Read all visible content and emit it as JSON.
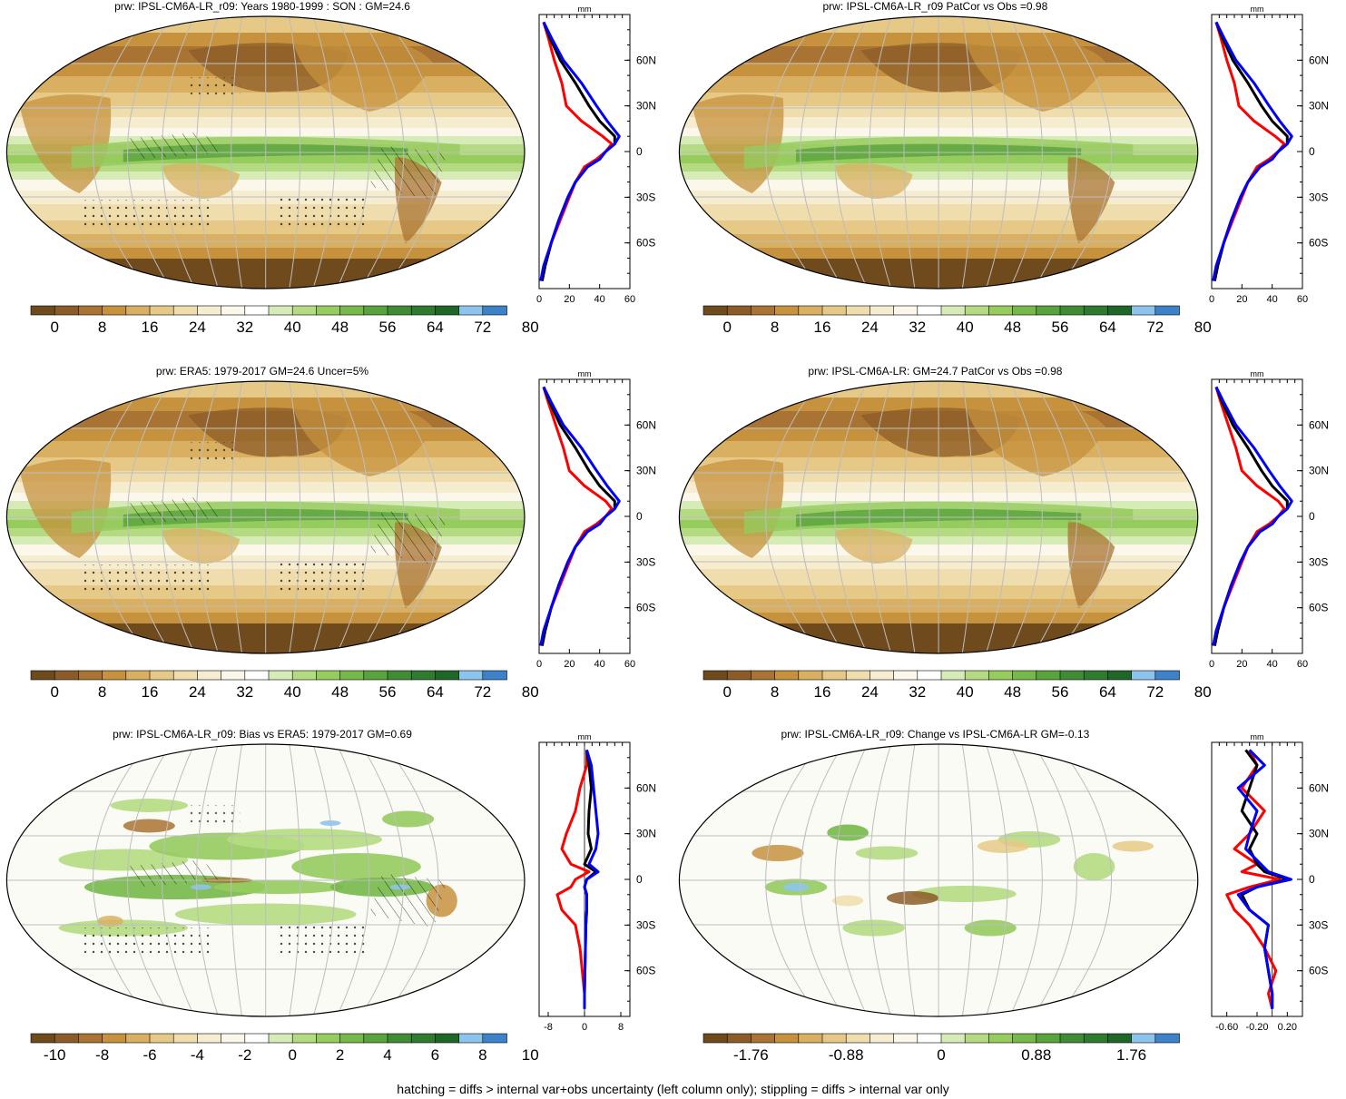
{
  "footer_note": "hatching = diffs > internal var+obs uncertainty (left column only); stippling = diffs > internal var only",
  "colors": {
    "scale": [
      "#6e4a1c",
      "#8c5c28",
      "#a97333",
      "#c6923e",
      "#d9b061",
      "#e6c987",
      "#efddad",
      "#f6ecd0",
      "#fbf7ea",
      "#ffffff",
      "#d7ebb8",
      "#b5db82",
      "#96cb5e",
      "#76b84a",
      "#59a33d",
      "#3f8c35",
      "#2e7a2f",
      "#1f6726",
      "#8dc4ee",
      "#3b82c8"
    ],
    "lines": {
      "model": "#ff0000",
      "ens": "#000000",
      "obs": "#0000ff"
    }
  },
  "panels": [
    {
      "id": "p1",
      "title": "prw: IPSL-CM6A-LR_r09: Years 1980-1999 : SON : GM=24.6",
      "colorbar_labels": [
        "0",
        "8",
        "16",
        "24",
        "32",
        "40",
        "48",
        "56",
        "64",
        "72",
        "80"
      ],
      "zonal_axis": {
        "units": "mm",
        "xticks": [
          "0",
          "20",
          "40",
          "60"
        ],
        "xmin": 0,
        "xmax": 60,
        "yticks": [
          "60N",
          "30N",
          "0",
          "30S",
          "60S"
        ]
      },
      "map_style": "full",
      "hatched": true
    },
    {
      "id": "p2",
      "title": "prw: IPSL-CM6A-LR_r09 PatCor vs Obs =0.98",
      "colorbar_labels": [
        "0",
        "8",
        "16",
        "24",
        "32",
        "40",
        "48",
        "56",
        "64",
        "72",
        "80"
      ],
      "zonal_axis": {
        "units": "mm",
        "xticks": [
          "0",
          "20",
          "40",
          "60"
        ],
        "xmin": 0,
        "xmax": 60,
        "yticks": [
          "60N",
          "30N",
          "0",
          "30S",
          "60S"
        ]
      },
      "map_style": "full",
      "hatched": false
    },
    {
      "id": "p3",
      "title": "prw: ERA5: 1979-2017 GM=24.6 Uncer=5%",
      "colorbar_labels": [
        "0",
        "8",
        "16",
        "24",
        "32",
        "40",
        "48",
        "56",
        "64",
        "72",
        "80"
      ],
      "zonal_axis": {
        "units": "mm",
        "xticks": [
          "0",
          "20",
          "40",
          "60"
        ],
        "xmin": 0,
        "xmax": 60,
        "yticks": [
          "60N",
          "30N",
          "0",
          "30S",
          "60S"
        ]
      },
      "map_style": "full",
      "hatched": true
    },
    {
      "id": "p4",
      "title": "prw: IPSL-CM6A-LR: GM=24.7 PatCor vs Obs =0.98",
      "colorbar_labels": [
        "0",
        "8",
        "16",
        "24",
        "32",
        "40",
        "48",
        "56",
        "64",
        "72",
        "80"
      ],
      "zonal_axis": {
        "units": "mm",
        "xticks": [
          "0",
          "20",
          "40",
          "60"
        ],
        "xmin": 0,
        "xmax": 60,
        "yticks": [
          "60N",
          "30N",
          "0",
          "30S",
          "60S"
        ]
      },
      "map_style": "full",
      "hatched": false
    },
    {
      "id": "p5",
      "title": "prw: IPSL-CM6A-LR_r09: Bias vs ERA5: 1979-2017  GM=0.69",
      "colorbar_labels": [
        "-10",
        "-8",
        "-6",
        "-4",
        "-2",
        "0",
        "2",
        "4",
        "6",
        "8",
        "10"
      ],
      "zonal_axis": {
        "units": "mm",
        "xticks": [
          "-8",
          "0",
          "8"
        ],
        "xmin": -10,
        "xmax": 10,
        "yticks": [
          "60N",
          "30N",
          "0",
          "30S",
          "60S"
        ]
      },
      "map_style": "bias",
      "hatched": true
    },
    {
      "id": "p6",
      "title": "prw: IPSL-CM6A-LR_r09: Change vs IPSL-CM6A-LR GM=-0.13",
      "colorbar_labels": [
        "-1.76",
        "-0.88",
        "0",
        "0.88",
        "1.76"
      ],
      "zonal_axis": {
        "units": "mm",
        "xticks": [
          "-0.60",
          "-0.20",
          "0.20"
        ],
        "xmin": -0.8,
        "xmax": 0.4,
        "yticks": [
          "60N",
          "30N",
          "0",
          "30S",
          "60S"
        ]
      },
      "map_style": "change",
      "hatched": false
    }
  ],
  "chart_data": [
    {
      "type": "line",
      "title": "prw: IPSL-CM6A-LR_r09: Years 1980-1999 : SON : GM=24.6",
      "xlabel": "mm",
      "ylabel": "",
      "xlim": [
        0,
        60
      ],
      "ylim": [
        -90,
        90
      ],
      "y": [
        85,
        75,
        60,
        45,
        30,
        20,
        10,
        5,
        0,
        -5,
        -10,
        -20,
        -30,
        -45,
        -60,
        -75,
        -85
      ],
      "series": [
        {
          "values": [
            3,
            6,
            10,
            15,
            18,
            28,
            42,
            48,
            44,
            38,
            30,
            24,
            20,
            14,
            8,
            4,
            2
          ]
        },
        {
          "values": [
            3,
            7,
            14,
            24,
            33,
            40,
            50,
            50,
            44,
            40,
            32,
            24,
            19,
            13,
            8,
            4,
            2
          ]
        },
        {
          "values": [
            3,
            8,
            16,
            28,
            38,
            45,
            53,
            50,
            44,
            40,
            32,
            24,
            19,
            13,
            8,
            3,
            1
          ]
        }
      ]
    },
    {
      "type": "line",
      "title": "prw: IPSL-CM6A-LR_r09 PatCor vs Obs =0.98",
      "xlabel": "mm",
      "ylabel": "",
      "xlim": [
        0,
        60
      ],
      "ylim": [
        -90,
        90
      ],
      "y": [
        85,
        75,
        60,
        45,
        30,
        20,
        10,
        5,
        0,
        -5,
        -10,
        -20,
        -30,
        -45,
        -60,
        -75,
        -85
      ],
      "series": [
        {
          "values": [
            3,
            6,
            10,
            15,
            18,
            28,
            42,
            48,
            44,
            38,
            30,
            24,
            20,
            14,
            8,
            4,
            2
          ]
        },
        {
          "values": [
            3,
            7,
            14,
            24,
            33,
            40,
            50,
            50,
            44,
            40,
            32,
            24,
            19,
            13,
            8,
            4,
            2
          ]
        },
        {
          "values": [
            3,
            8,
            16,
            28,
            38,
            45,
            53,
            50,
            44,
            40,
            32,
            24,
            19,
            13,
            8,
            3,
            1
          ]
        }
      ]
    },
    {
      "type": "line",
      "title": "prw: ERA5: 1979-2017 GM=24.6 Uncer=5%",
      "xlabel": "mm",
      "ylabel": "",
      "xlim": [
        0,
        60
      ],
      "ylim": [
        -90,
        90
      ],
      "y": [
        85,
        75,
        60,
        45,
        30,
        20,
        10,
        5,
        0,
        -5,
        -10,
        -20,
        -30,
        -45,
        -60,
        -75,
        -85
      ],
      "series": [
        {
          "values": [
            3,
            6,
            11,
            16,
            20,
            30,
            44,
            48,
            44,
            38,
            30,
            24,
            20,
            14,
            8,
            4,
            2
          ]
        },
        {
          "values": [
            3,
            7,
            14,
            24,
            33,
            40,
            50,
            50,
            44,
            40,
            32,
            24,
            19,
            13,
            8,
            4,
            2
          ]
        },
        {
          "values": [
            3,
            8,
            16,
            28,
            38,
            45,
            53,
            50,
            44,
            40,
            32,
            24,
            19,
            13,
            8,
            3,
            1
          ]
        }
      ]
    },
    {
      "type": "line",
      "title": "prw: IPSL-CM6A-LR: GM=24.7 PatCor vs Obs =0.98",
      "xlabel": "mm",
      "ylabel": "",
      "xlim": [
        0,
        60
      ],
      "ylim": [
        -90,
        90
      ],
      "y": [
        85,
        75,
        60,
        45,
        30,
        20,
        10,
        5,
        0,
        -5,
        -10,
        -20,
        -30,
        -45,
        -60,
        -75,
        -85
      ],
      "series": [
        {
          "values": [
            3,
            6,
            11,
            16,
            20,
            30,
            44,
            48,
            44,
            38,
            30,
            24,
            20,
            14,
            8,
            4,
            2
          ]
        },
        {
          "values": [
            3,
            7,
            14,
            24,
            33,
            40,
            50,
            50,
            44,
            40,
            32,
            24,
            19,
            13,
            8,
            4,
            2
          ]
        },
        {
          "values": [
            3,
            8,
            16,
            28,
            38,
            45,
            53,
            50,
            44,
            40,
            32,
            24,
            19,
            13,
            8,
            3,
            1
          ]
        }
      ]
    },
    {
      "type": "line",
      "title": "prw: IPSL-CM6A-LR_r09: Bias vs ERA5: 1979-2017  GM=0.69",
      "xlabel": "mm",
      "ylabel": "",
      "xlim": [
        -10,
        10
      ],
      "ylim": [
        -90,
        90
      ],
      "y": [
        85,
        75,
        60,
        45,
        30,
        20,
        10,
        5,
        0,
        -5,
        -10,
        -20,
        -30,
        -45,
        -60,
        -75,
        -85
      ],
      "series": [
        {
          "values": [
            0.5,
            0.5,
            -1,
            -2,
            -4,
            -5,
            -3,
            1,
            -2,
            -3,
            -6,
            -5,
            -2,
            -1,
            -0.5,
            0,
            0
          ]
        },
        {
          "values": [
            0.5,
            1,
            1.5,
            1,
            0.8,
            1.5,
            0,
            2.5,
            0.5,
            0,
            0.5,
            0.5,
            0.3,
            0.2,
            0.1,
            0,
            0
          ]
        },
        {
          "values": [
            0.5,
            1.5,
            2,
            2.5,
            3,
            2.5,
            1,
            3,
            0.5,
            0,
            0.5,
            0.5,
            0.3,
            0.2,
            0.1,
            0,
            0
          ]
        }
      ]
    },
    {
      "type": "line",
      "title": "prw: IPSL-CM6A-LR_r09: Change vs IPSL-CM6A-LR GM=-0.13",
      "xlabel": "mm",
      "ylabel": "",
      "xlim": [
        -0.8,
        0.4
      ],
      "ylim": [
        -90,
        90
      ],
      "y": [
        85,
        75,
        60,
        45,
        30,
        20,
        10,
        5,
        0,
        -5,
        -10,
        -20,
        -30,
        -45,
        -60,
        -75,
        -85
      ],
      "series": [
        {
          "values": [
            -0.3,
            -0.2,
            -0.4,
            -0.1,
            -0.3,
            -0.5,
            -0.2,
            -0.4,
            0.1,
            -0.3,
            -0.6,
            -0.5,
            -0.3,
            -0.1,
            0.05,
            -0.05,
            0
          ]
        },
        {
          "values": [
            -0.35,
            -0.2,
            -0.3,
            -0.4,
            -0.2,
            -0.3,
            -0.2,
            -0.1,
            0.2,
            -0.2,
            -0.4,
            -0.3,
            -0.05,
            -0.1,
            -0.05,
            0,
            0
          ]
        },
        {
          "values": [
            -0.3,
            -0.1,
            -0.45,
            -0.2,
            -0.3,
            -0.35,
            -0.15,
            -0.05,
            0.25,
            -0.2,
            -0.45,
            -0.3,
            -0.05,
            -0.1,
            -0.05,
            0,
            0
          ]
        }
      ]
    }
  ]
}
